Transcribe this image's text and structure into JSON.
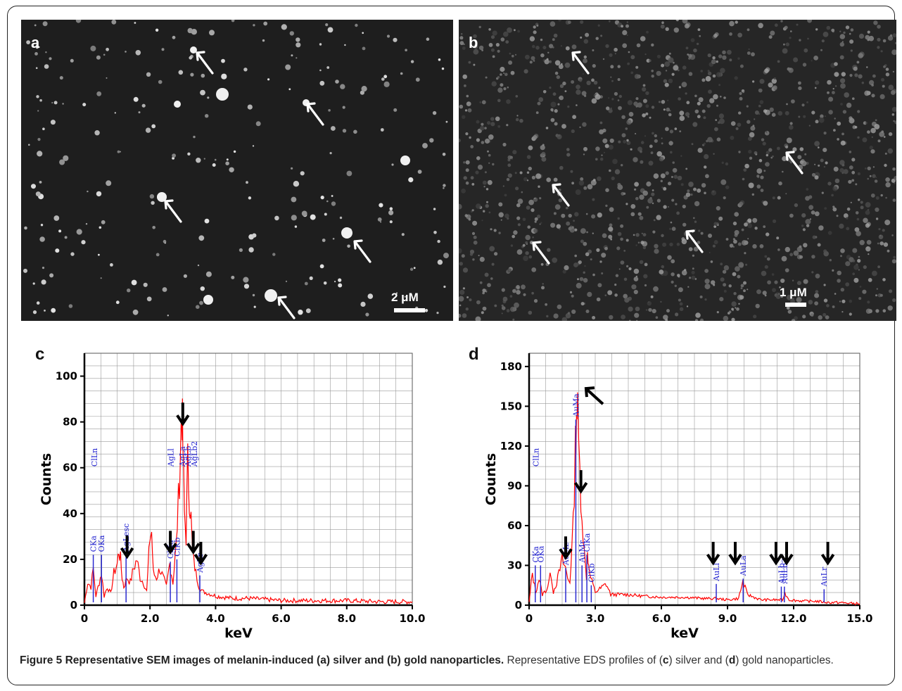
{
  "panels": [
    {
      "letter": "a",
      "scale_label": "2 μM"
    },
    {
      "letter": "b",
      "scale_label": "1 μM"
    }
  ],
  "charts_letters": [
    "c",
    "d"
  ],
  "caption": {
    "bold": "Figure 5 Representative SEM images of melanin-induced (a) silver and (b) gold nanoparticles.",
    "pre": " Representative EDS profiles of (",
    "c": "c",
    "mid": ") silver and (",
    "d": "d",
    "post": ") gold nanoparticles."
  },
  "colors": {
    "spectrum": "#ff0000",
    "peak_label": "#1f1fcf",
    "marker": "#2a2ad0",
    "grid": "#9a9a9a"
  },
  "chart_data": [
    {
      "type": "line",
      "xlabel": "keV",
      "ylabel": "Counts",
      "xlim": [
        0,
        10
      ],
      "ylim": [
        0,
        110
      ],
      "xticks": [
        0,
        2,
        4,
        6,
        8,
        10
      ],
      "xtick_labels": [
        "0",
        "2.0",
        "4.0",
        "6.0",
        "8.0",
        "10.0"
      ],
      "yticks": [
        0,
        20,
        40,
        60,
        80,
        100
      ],
      "ytick_labels": [
        "0",
        "20",
        "40",
        "60",
        "80",
        "100"
      ],
      "grid": true,
      "series": [
        {
          "x": [
            0.0,
            0.1,
            0.2,
            0.27,
            0.35,
            0.45,
            0.52,
            0.6,
            0.7,
            0.8,
            0.9,
            1.0,
            1.05,
            1.1,
            1.15,
            1.2,
            1.3,
            1.4,
            1.5,
            1.6,
            1.7,
            1.8,
            1.9,
            2.0,
            2.05,
            2.1,
            2.2,
            2.3,
            2.4,
            2.5,
            2.6,
            2.65,
            2.7,
            2.8,
            2.9,
            2.95,
            2.98,
            3.0,
            3.05,
            3.1,
            3.15,
            3.2,
            3.25,
            3.3,
            3.4,
            3.5,
            3.6,
            3.8,
            4.0,
            4.5,
            5.0,
            6.0,
            7.0,
            8.0,
            9.0,
            10.0
          ],
          "y": [
            1,
            10,
            8,
            16,
            4,
            10,
            14,
            4,
            8,
            5,
            14,
            18,
            24,
            20,
            12,
            8,
            12,
            10,
            16,
            20,
            12,
            10,
            6,
            30,
            32,
            14,
            12,
            16,
            12,
            8,
            18,
            14,
            10,
            26,
            56,
            78,
            84,
            70,
            40,
            30,
            62,
            48,
            38,
            22,
            14,
            8,
            6,
            5,
            4,
            3,
            3,
            2,
            2,
            2,
            1.5,
            1.5
          ]
        }
      ],
      "peaks": [
        {
          "label": "CKa",
          "x": 0.27,
          "h": 22
        },
        {
          "label": "ClLn",
          "x": 0.3,
          "h": 0
        },
        {
          "label": "OKa",
          "x": 0.52,
          "h": 22
        },
        {
          "label": "AgLesc",
          "x": 1.27,
          "h": 22
        },
        {
          "label": "ClKa",
          "x": 2.62,
          "h": 19
        },
        {
          "label": "AgLl",
          "x": 2.63,
          "h": 0
        },
        {
          "label": "ClKb",
          "x": 2.82,
          "h": 20
        },
        {
          "label": "AgLa",
          "x": 2.98,
          "h": 0
        },
        {
          "label": "AgLb",
          "x": 3.15,
          "h": 0
        },
        {
          "label": "AgLb2",
          "x": 3.35,
          "h": 0
        },
        {
          "label": "AgLr",
          "x": 3.52,
          "h": 13
        }
      ],
      "arrow_x": [
        1.3,
        2.62,
        3.0,
        3.32,
        3.55
      ]
    },
    {
      "type": "line",
      "xlabel": "keV",
      "ylabel": "Counts",
      "xlim": [
        0,
        15
      ],
      "ylim": [
        0,
        190
      ],
      "xticks": [
        0,
        3,
        6,
        9,
        12,
        15
      ],
      "xtick_labels": [
        "0",
        "3.0",
        "6.0",
        "9.0",
        "12.0",
        "15.0"
      ],
      "yticks": [
        0,
        30,
        60,
        90,
        120,
        150,
        180
      ],
      "ytick_labels": [
        "0",
        "30",
        "60",
        "90",
        "120",
        "150",
        "180"
      ],
      "grid": true,
      "series": [
        {
          "x": [
            0.0,
            0.15,
            0.3,
            0.45,
            0.6,
            0.8,
            1.0,
            1.1,
            1.3,
            1.5,
            1.65,
            1.75,
            1.85,
            2.0,
            2.1,
            2.15,
            2.2,
            2.3,
            2.4,
            2.5,
            2.6,
            2.65,
            2.7,
            2.8,
            3.0,
            3.2,
            3.5,
            3.7,
            4.0,
            4.5,
            5.0,
            6.0,
            7.0,
            8.0,
            8.5,
            9.0,
            9.5,
            9.7,
            9.9,
            10.5,
            11.0,
            11.5,
            11.6,
            11.8,
            12.5,
            13.0,
            13.6,
            14.0,
            15.0
          ],
          "y": [
            2,
            24,
            10,
            20,
            8,
            12,
            24,
            10,
            20,
            34,
            28,
            20,
            18,
            60,
            120,
            152,
            140,
            100,
            70,
            40,
            22,
            44,
            28,
            20,
            10,
            12,
            16,
            8,
            8,
            8,
            7,
            6,
            6,
            5,
            5,
            4,
            5,
            18,
            8,
            4,
            4,
            4,
            9,
            4,
            3,
            3,
            2,
            2,
            1
          ]
        }
      ],
      "peaks": [
        {
          "label": "CKa",
          "x": 0.28,
          "h": 30
        },
        {
          "label": "ClLn",
          "x": 0.3,
          "h": 0
        },
        {
          "label": "OKa",
          "x": 0.52,
          "h": 30
        },
        {
          "label": "AuMz",
          "x": 1.66,
          "h": 28
        },
        {
          "label": "AuMa",
          "x": 2.12,
          "h": 140
        },
        {
          "label": "AuMr",
          "x": 2.4,
          "h": 30
        },
        {
          "label": "ClKa",
          "x": 2.62,
          "h": 38
        },
        {
          "label": "ClKb",
          "x": 2.82,
          "h": 15
        },
        {
          "label": "AuLl",
          "x": 8.49,
          "h": 16
        },
        {
          "label": "AuLa",
          "x": 9.71,
          "h": 20
        },
        {
          "label": "AuLb",
          "x": 11.44,
          "h": 14
        },
        {
          "label": "AuLb2",
          "x": 11.58,
          "h": 14
        },
        {
          "label": "AuLr",
          "x": 13.38,
          "h": 12
        }
      ],
      "arrow_x": [
        1.66,
        2.35,
        8.35,
        9.35,
        11.2,
        11.68,
        13.55
      ],
      "diag_arrow_x": 2.2
    }
  ]
}
